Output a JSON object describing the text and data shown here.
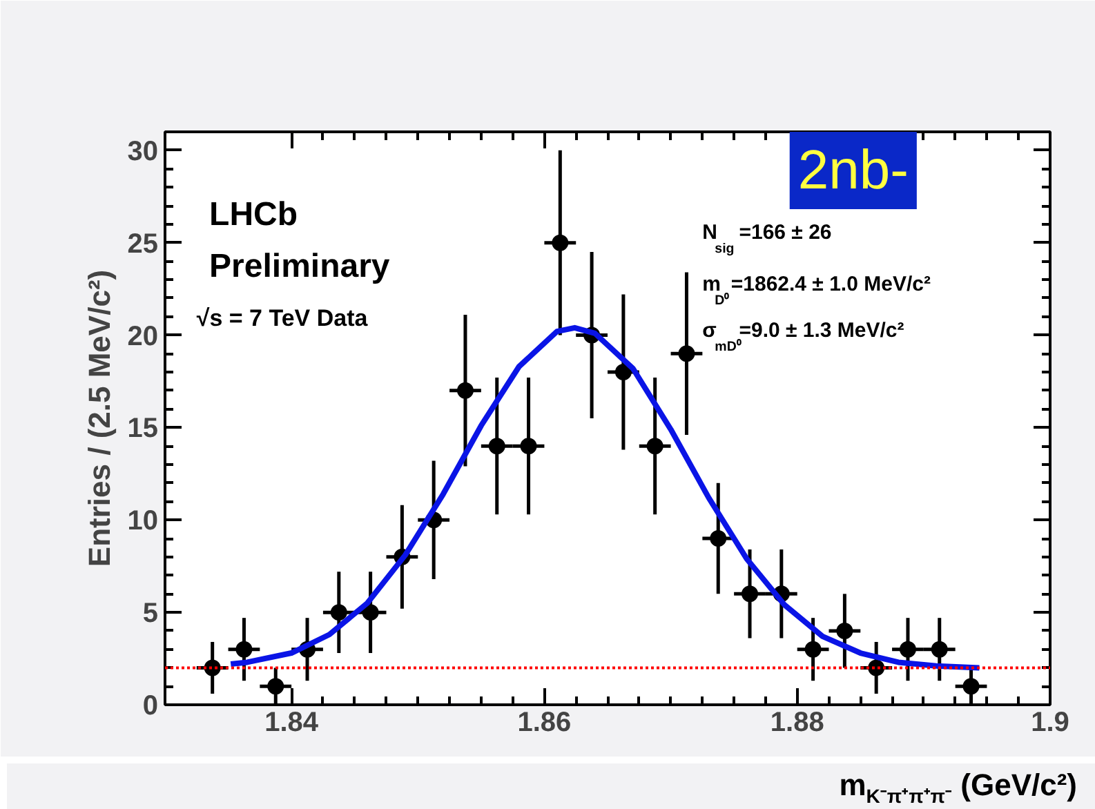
{
  "chart_data": {
    "type": "scatter",
    "xlabel": "m$_{K⁻π⁺π⁺π⁻}$ (GeV/c²)",
    "ylabel": "Entries / (2.5 MeV/c²)",
    "xlim": [
      1.83,
      1.9
    ],
    "ylim": [
      0,
      31
    ],
    "xticks": [
      1.84,
      1.86,
      1.88,
      1.9
    ],
    "yticks": [
      0,
      5,
      10,
      15,
      20,
      25,
      30
    ],
    "grid": false,
    "series": [
      {
        "marker": "circle",
        "color": "#000000",
        "x": [
          1.83375,
          1.83625,
          1.83875,
          1.84125,
          1.84375,
          1.84625,
          1.84875,
          1.85125,
          1.85375,
          1.85625,
          1.85875,
          1.86125,
          1.86375,
          1.86625,
          1.86875,
          1.87125,
          1.87375,
          1.87625,
          1.87875,
          1.88125,
          1.88375,
          1.88625,
          1.88875,
          1.89125,
          1.89375
        ],
        "values": [
          2,
          3,
          1,
          3,
          5,
          5,
          8,
          10,
          17,
          14,
          14,
          25,
          20,
          18,
          14,
          19,
          9,
          6,
          6,
          3,
          4,
          2,
          3,
          3,
          1
        ],
        "errors": [
          1.4,
          1.7,
          1,
          1.7,
          2.2,
          2.2,
          2.8,
          3.2,
          4.1,
          3.7,
          3.7,
          5,
          4.5,
          4.2,
          3.7,
          4.4,
          3,
          2.4,
          2.4,
          1.7,
          2,
          1.4,
          1.7,
          1.7,
          1
        ],
        "xerrors": [
          0.00125,
          0.00125,
          0.00125,
          0.00125,
          0.00125,
          0.00125,
          0.00125,
          0.00125,
          0.00125,
          0.00125,
          0.00125,
          0.00125,
          0.00125,
          0.00125,
          0.00125,
          0.00125,
          0.00125,
          0.00125,
          0.00125,
          0.00125,
          0.00125,
          0.00125,
          0.00125,
          0.00125,
          0.00125
        ]
      },
      {
        "type": "line",
        "marker": "none",
        "color": "#0a14e6",
        "line_style": "solid",
        "x": [
          1.8352,
          1.8365,
          1.84,
          1.843,
          1.846,
          1.849,
          1.852,
          1.855,
          1.858,
          1.861,
          1.8624,
          1.864,
          1.867,
          1.87,
          1.873,
          1.876,
          1.879,
          1.882,
          1.885,
          1.888,
          1.891,
          1.8944
        ],
        "values": [
          2.2,
          2.3,
          2.8,
          3.8,
          5.5,
          8.1,
          11.4,
          15.1,
          18.3,
          20.2,
          20.4,
          20.1,
          18.2,
          14.9,
          11.2,
          7.9,
          5.4,
          3.7,
          2.8,
          2.3,
          2.1,
          2.0
        ]
      }
    ],
    "ref_lines": [
      {
        "axis": "y",
        "value": 2,
        "color": "#ff0000",
        "line_style": "dotted"
      }
    ],
    "annotations": [
      "LHCb",
      "Preliminary",
      "√s = 7 TeV Data",
      "N$_{sig}$=166 ± 26",
      "m$_{D⁰}$=1862.4 ± 1.0 MeV/c²",
      "σ$_{mD⁰}$=9.0 ± 1.3 MeV/c²",
      "2nb-"
    ]
  }
}
